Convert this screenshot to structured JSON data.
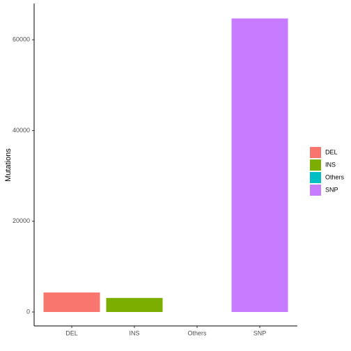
{
  "chart_data": {
    "type": "bar",
    "y_label": "Mutations",
    "categories": [
      "DEL",
      "INS",
      "Others",
      "SNP"
    ],
    "series": [
      {
        "name": "Mutations",
        "values": [
          4300,
          3100,
          0,
          64700
        ]
      }
    ],
    "colors": [
      "#F8766D",
      "#7CAE00",
      "#00BFC4",
      "#C77CFF"
    ],
    "ylim": [
      -3070,
      68000
    ],
    "yticks": [
      0,
      20000,
      40000,
      60000
    ],
    "legend": "right",
    "grid": false
  }
}
